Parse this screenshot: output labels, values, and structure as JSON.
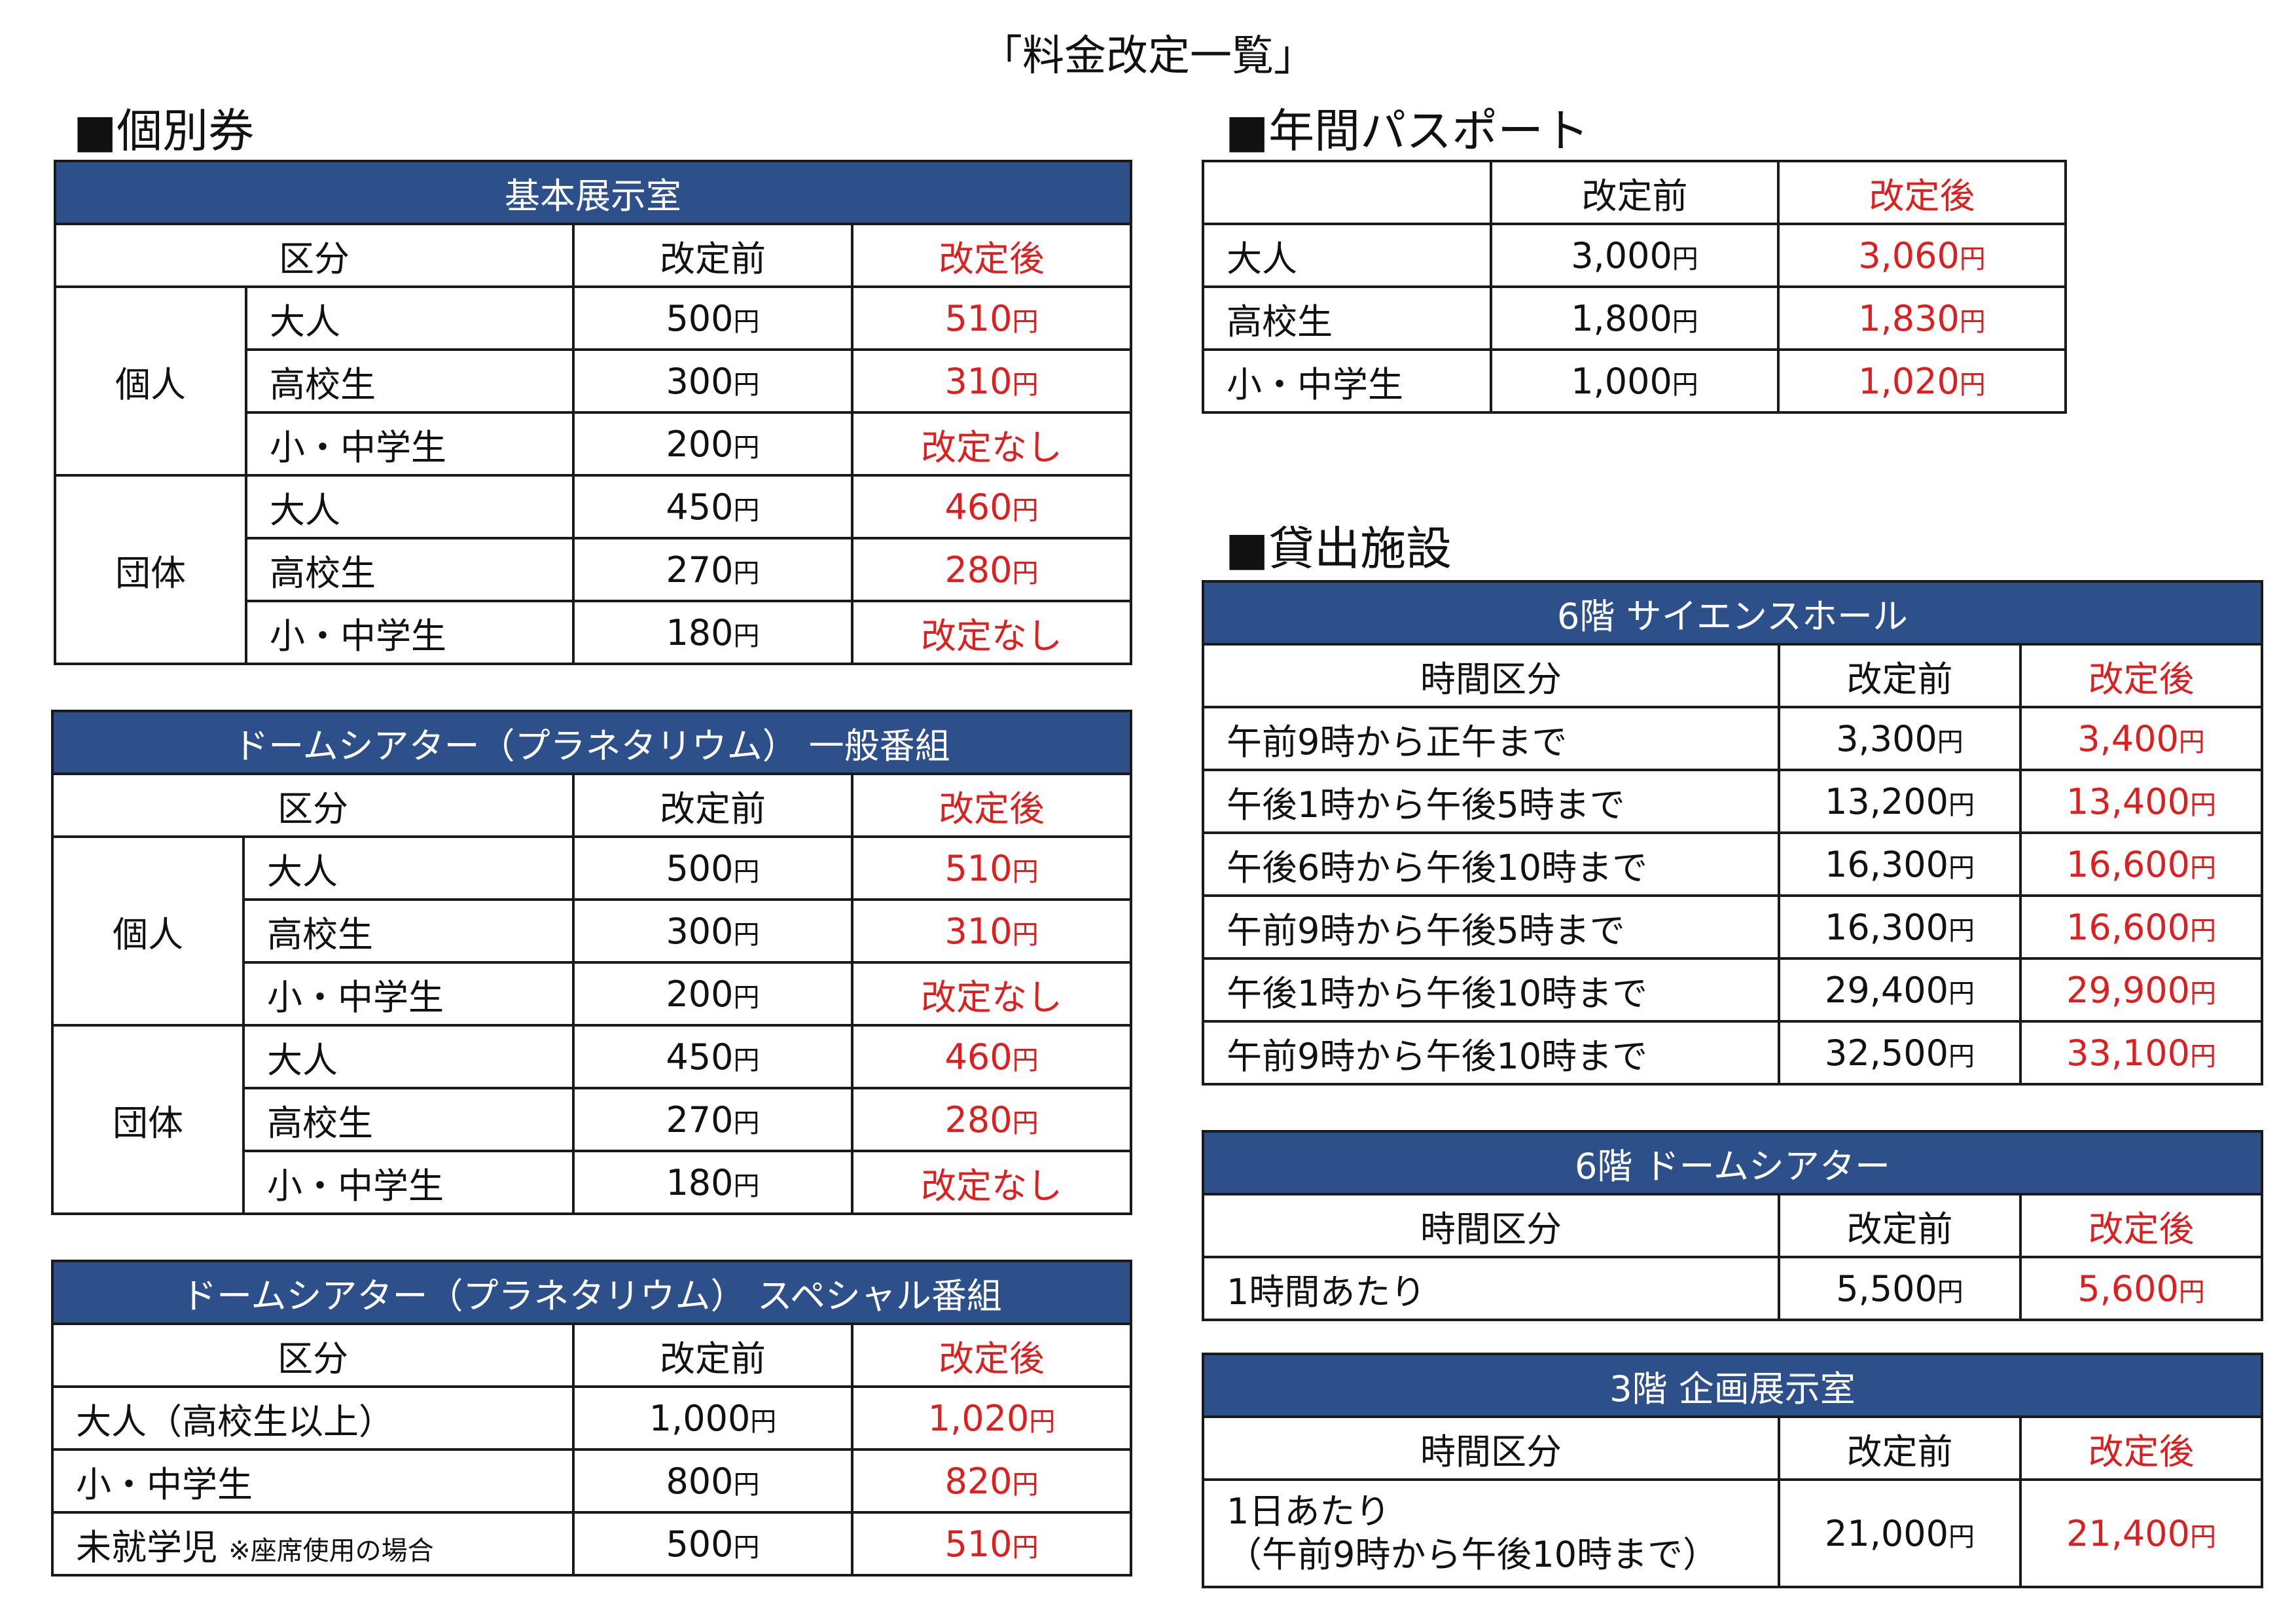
{
  "title": "「料金改定一覧」",
  "yen": "円",
  "individual": {
    "heading": "■個別券",
    "basic": {
      "title": "基本展示室",
      "col_category": "区分",
      "col_before": "改定前",
      "col_after": "改定後",
      "groups": [
        {
          "name": "個人",
          "rows": [
            {
              "label": "大人",
              "before": "500",
              "after": "510"
            },
            {
              "label": "高校生",
              "before": "300",
              "after": "310"
            },
            {
              "label": "小・中学生",
              "before": "200",
              "after": "改定なし"
            }
          ]
        },
        {
          "name": "団体",
          "rows": [
            {
              "label": "大人",
              "before": "450",
              "after": "460"
            },
            {
              "label": "高校生",
              "before": "270",
              "after": "280"
            },
            {
              "label": "小・中学生",
              "before": "180",
              "after": "改定なし"
            }
          ]
        }
      ]
    },
    "dome_general": {
      "title": "ドームシアター（プラネタリウム） 一般番組",
      "col_category": "区分",
      "col_before": "改定前",
      "col_after": "改定後",
      "groups": [
        {
          "name": "個人",
          "rows": [
            {
              "label": "大人",
              "before": "500",
              "after": "510"
            },
            {
              "label": "高校生",
              "before": "300",
              "after": "310"
            },
            {
              "label": "小・中学生",
              "before": "200",
              "after": "改定なし"
            }
          ]
        },
        {
          "name": "団体",
          "rows": [
            {
              "label": "大人",
              "before": "450",
              "after": "460"
            },
            {
              "label": "高校生",
              "before": "270",
              "after": "280"
            },
            {
              "label": "小・中学生",
              "before": "180",
              "after": "改定なし"
            }
          ]
        }
      ]
    },
    "dome_special": {
      "title": "ドームシアター（プラネタリウム） スペシャル番組",
      "col_category": "区分",
      "col_before": "改定前",
      "col_after": "改定後",
      "rows": [
        {
          "label": "大人（高校生以上）",
          "note": "",
          "before": "1,000",
          "after": "1,020"
        },
        {
          "label": "小・中学生",
          "note": "",
          "before": "800",
          "after": "820"
        },
        {
          "label": "未就学児",
          "note": "※座席使用の場合",
          "before": "500",
          "after": "510"
        }
      ]
    }
  },
  "passport": {
    "heading": "■年間パスポート",
    "col_before": "改定前",
    "col_after": "改定後",
    "rows": [
      {
        "label": "大人",
        "before": "3,000",
        "after": "3,060"
      },
      {
        "label": "高校生",
        "before": "1,800",
        "after": "1,830"
      },
      {
        "label": "小・中学生",
        "before": "1,000",
        "after": "1,020"
      }
    ]
  },
  "rental": {
    "heading": "■貸出施設",
    "science_hall": {
      "title": "6階 サイエンスホール",
      "col_time": "時間区分",
      "col_before": "改定前",
      "col_after": "改定後",
      "rows": [
        {
          "label": "午前9時から正午まで",
          "before": "3,300",
          "after": "3,400"
        },
        {
          "label": "午後1時から午後5時まで",
          "before": "13,200",
          "after": "13,400"
        },
        {
          "label": "午後6時から午後10時まで",
          "before": "16,300",
          "after": "16,600"
        },
        {
          "label": "午前9時から午後5時まで",
          "before": "16,300",
          "after": "16,600"
        },
        {
          "label": "午後1時から午後10時まで",
          "before": "29,400",
          "after": "29,900"
        },
        {
          "label": "午前9時から午後10時まで",
          "before": "32,500",
          "after": "33,100"
        }
      ]
    },
    "dome_theater": {
      "title": "6階 ドームシアター",
      "col_time": "時間区分",
      "col_before": "改定前",
      "col_after": "改定後",
      "rows": [
        {
          "label": "1時間あたり",
          "before": "5,500",
          "after": "5,600"
        }
      ]
    },
    "exhibition": {
      "title": "3階 企画展示室",
      "col_time": "時間区分",
      "col_before": "改定前",
      "col_after": "改定後",
      "rows": [
        {
          "label": "1日あたり",
          "label2": "（午前9時から午後10時まで）",
          "before": "21,000",
          "after": "21,400"
        }
      ]
    }
  },
  "colors": {
    "header_bg": "#2d4f8a",
    "after_text": "#dd1f1f",
    "border": "#1a1a1a"
  }
}
